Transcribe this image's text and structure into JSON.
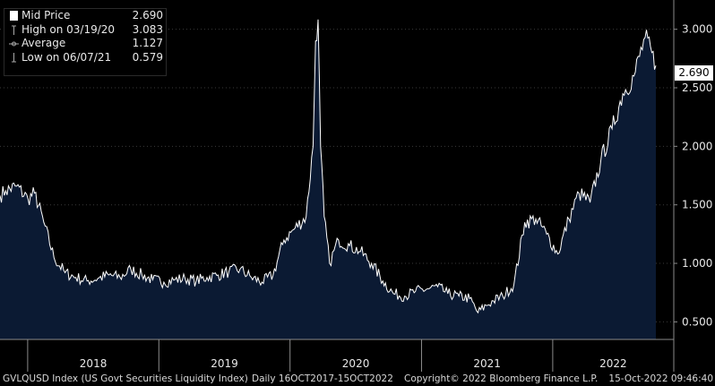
{
  "legend": {
    "rows": [
      {
        "label": "Mid Price",
        "value": "2.690"
      },
      {
        "label": "High on 03/19/20",
        "value": "3.083"
      },
      {
        "label": "Average",
        "value": "1.127"
      },
      {
        "label": "Low on 06/07/21",
        "value": "0.579"
      }
    ]
  },
  "last_value_label": "2.690",
  "footer": {
    "ticker": "GVLQUSD Index (US Govt Securities Liquidity Index)",
    "range": "Daily 16OCT2017-15OCT2022",
    "copyright": "Copyright© 2022 Bloomberg Finance L.P.",
    "timestamp": "15-Oct-2022 09:46:40"
  },
  "colors": {
    "area_fill": "#0b1a33",
    "line": "#ffffff",
    "background": "#000000",
    "axis": "#8a8a8a"
  },
  "chart_data": {
    "type": "area",
    "ylim": [
      0.35,
      3.25
    ],
    "yticks": [
      0.5,
      1.0,
      1.5,
      2.0,
      2.5,
      3.0
    ],
    "ytick_labels": [
      "0.500",
      "1.000",
      "1.500",
      "2.000",
      "2.500",
      "3.000"
    ],
    "xlim": [
      "2017-10-16",
      "2022-10-15"
    ],
    "xticks": [
      "2018",
      "2019",
      "2020",
      "2021",
      "2022"
    ],
    "x": [
      "2017-10-16",
      "2017-11-01",
      "2017-12-01",
      "2018-01-02",
      "2018-01-20",
      "2018-02-15",
      "2018-03-15",
      "2018-04-15",
      "2018-05-15",
      "2018-06-15",
      "2018-07-15",
      "2018-08-15",
      "2018-09-15",
      "2018-10-15",
      "2018-11-15",
      "2018-12-15",
      "2019-01-15",
      "2019-02-15",
      "2019-03-15",
      "2019-04-15",
      "2019-05-15",
      "2019-06-15",
      "2019-07-15",
      "2019-08-15",
      "2019-09-15",
      "2019-10-15",
      "2019-11-15",
      "2019-12-15",
      "2020-01-15",
      "2020-02-15",
      "2020-03-05",
      "2020-03-12",
      "2020-03-19",
      "2020-03-26",
      "2020-04-05",
      "2020-04-20",
      "2020-05-15",
      "2020-06-15",
      "2020-07-15",
      "2020-08-15",
      "2020-09-15",
      "2020-10-15",
      "2020-11-15",
      "2020-12-15",
      "2021-01-15",
      "2021-02-15",
      "2021-03-15",
      "2021-04-15",
      "2021-05-15",
      "2021-06-07",
      "2021-06-30",
      "2021-07-20",
      "2021-08-15",
      "2021-09-15",
      "2021-10-15",
      "2021-11-15",
      "2021-12-15",
      "2022-01-15",
      "2022-02-15",
      "2022-03-15",
      "2022-04-15",
      "2022-05-15",
      "2022-06-15",
      "2022-07-15",
      "2022-08-15",
      "2022-09-15",
      "2022-10-15"
    ],
    "values": [
      1.58,
      1.62,
      1.66,
      1.55,
      1.6,
      1.35,
      1.05,
      0.92,
      0.88,
      0.85,
      0.87,
      0.9,
      0.88,
      0.95,
      0.9,
      0.86,
      0.84,
      0.86,
      0.87,
      0.85,
      0.88,
      0.9,
      0.93,
      0.95,
      0.88,
      0.84,
      0.9,
      1.2,
      1.3,
      1.4,
      2.0,
      2.9,
      3.083,
      2.0,
      1.4,
      1.0,
      1.2,
      1.15,
      1.1,
      1.0,
      0.85,
      0.74,
      0.72,
      0.76,
      0.78,
      0.8,
      0.74,
      0.72,
      0.7,
      0.579,
      0.64,
      0.68,
      0.72,
      0.82,
      1.35,
      1.38,
      1.25,
      1.08,
      1.38,
      1.6,
      1.52,
      1.88,
      2.15,
      2.45,
      2.6,
      2.93,
      2.69
    ]
  }
}
